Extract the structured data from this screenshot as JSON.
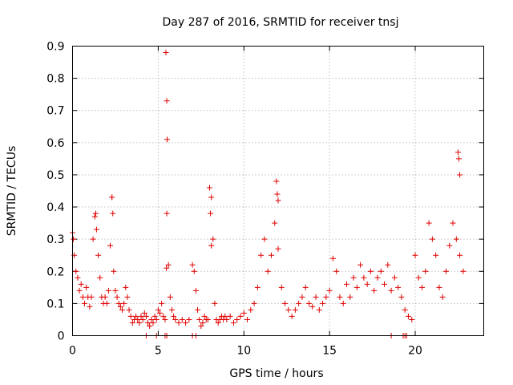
{
  "chart_data": {
    "type": "scatter",
    "title": "Day 287 of 2016, SRMTID for receiver tnsj",
    "xlabel": "GPS time / hours",
    "ylabel": "SRMTID / TECUs",
    "xlim": [
      0,
      24
    ],
    "ylim": [
      0,
      0.9
    ],
    "xticks": [
      0,
      5,
      10,
      15,
      20
    ],
    "yticks": [
      0,
      0.1,
      0.2,
      0.3,
      0.4,
      0.5,
      0.6,
      0.7,
      0.8,
      0.9
    ],
    "xtick_labels": [
      "0",
      "5",
      "10",
      "15",
      "20"
    ],
    "ytick_labels": [
      "0",
      "0.1",
      "0.2",
      "0.3",
      "0.4",
      "0.5",
      "0.6",
      "0.7",
      "0.8",
      "0.9"
    ],
    "grid": true,
    "marker": "+",
    "color": "#e00000",
    "series": [
      {
        "name": "SRMTID",
        "x": [
          0.0,
          0.1,
          0.2,
          0.3,
          0.4,
          0.5,
          0.6,
          0.7,
          0.8,
          0.9,
          1.0,
          1.1,
          1.2,
          1.3,
          1.4,
          1.5,
          1.6,
          1.7,
          1.8,
          1.9,
          2.0,
          2.1,
          2.2,
          2.3,
          2.4,
          2.5,
          2.6,
          2.7,
          2.8,
          2.9,
          3.0,
          3.1,
          3.2,
          3.3,
          3.4,
          3.5,
          3.6,
          3.7,
          3.8,
          3.9,
          4.0,
          4.1,
          4.2,
          4.3,
          4.4,
          4.5,
          4.6,
          4.7,
          4.8,
          4.9,
          5.0,
          5.1,
          5.2,
          5.3,
          5.4,
          5.5,
          5.6,
          5.7,
          5.8,
          5.9,
          6.0,
          6.2,
          6.4,
          6.6,
          6.8,
          7.0,
          7.1,
          7.2,
          7.3,
          7.4,
          7.5,
          7.6,
          7.7,
          7.8,
          7.9,
          8.0,
          8.1,
          8.2,
          8.3,
          8.4,
          8.5,
          8.6,
          8.7,
          8.8,
          8.9,
          9.0,
          9.2,
          9.4,
          9.6,
          9.8,
          10.0,
          10.2,
          10.4,
          10.6,
          10.8,
          11.0,
          11.2,
          11.4,
          11.6,
          11.8,
          12.0,
          12.2,
          12.4,
          12.6,
          12.8,
          13.0,
          13.2,
          13.4,
          13.6,
          13.8,
          14.0,
          14.2,
          14.4,
          14.6,
          14.8,
          15.0,
          15.2,
          15.4,
          15.6,
          15.8,
          16.0,
          16.2,
          16.4,
          16.6,
          16.8,
          17.0,
          17.2,
          17.4,
          17.6,
          17.8,
          18.0,
          18.2,
          18.4,
          18.6,
          18.8,
          19.0,
          19.2,
          19.4,
          19.6,
          19.8,
          20.0,
          20.2,
          20.4,
          20.6,
          20.8,
          21.0,
          21.2,
          21.4,
          21.6,
          21.8,
          22.0,
          22.2,
          22.4,
          22.6,
          22.8,
          5.45,
          5.5,
          5.52,
          5.48,
          8.0,
          8.05,
          8.1,
          11.9,
          11.95,
          2.3,
          2.35,
          22.5,
          22.55,
          22.6,
          12.0,
          1.35,
          0.05,
          4.3,
          4.9,
          5.5,
          7.0,
          7.2,
          18.6,
          19.3,
          19.4,
          19.5,
          5.4
        ],
        "y": [
          0.32,
          0.25,
          0.2,
          0.18,
          0.14,
          0.16,
          0.12,
          0.1,
          0.15,
          0.12,
          0.09,
          0.12,
          0.3,
          0.37,
          0.33,
          0.25,
          0.18,
          0.12,
          0.1,
          0.12,
          0.1,
          0.14,
          0.28,
          0.43,
          0.2,
          0.14,
          0.12,
          0.1,
          0.09,
          0.08,
          0.1,
          0.15,
          0.12,
          0.08,
          0.06,
          0.04,
          0.05,
          0.06,
          0.05,
          0.04,
          0.06,
          0.05,
          0.07,
          0.06,
          0.04,
          0.03,
          0.05,
          0.04,
          0.06,
          0.05,
          0.08,
          0.07,
          0.1,
          0.06,
          0.05,
          0.38,
          0.22,
          0.12,
          0.08,
          0.06,
          0.05,
          0.04,
          0.05,
          0.04,
          0.05,
          0.22,
          0.2,
          0.14,
          0.08,
          0.05,
          0.03,
          0.04,
          0.06,
          0.05,
          0.05,
          0.46,
          0.43,
          0.3,
          0.1,
          0.05,
          0.04,
          0.05,
          0.06,
          0.05,
          0.06,
          0.05,
          0.06,
          0.04,
          0.05,
          0.06,
          0.07,
          0.05,
          0.08,
          0.1,
          0.15,
          0.25,
          0.3,
          0.2,
          0.25,
          0.35,
          0.27,
          0.15,
          0.1,
          0.08,
          0.06,
          0.08,
          0.1,
          0.12,
          0.15,
          0.1,
          0.09,
          0.12,
          0.08,
          0.1,
          0.12,
          0.14,
          0.24,
          0.2,
          0.12,
          0.1,
          0.16,
          0.12,
          0.18,
          0.15,
          0.22,
          0.18,
          0.16,
          0.2,
          0.14,
          0.18,
          0.2,
          0.16,
          0.22,
          0.14,
          0.18,
          0.15,
          0.12,
          0.08,
          0.06,
          0.05,
          0.25,
          0.18,
          0.15,
          0.2,
          0.35,
          0.3,
          0.25,
          0.15,
          0.12,
          0.2,
          0.28,
          0.35,
          0.3,
          0.25,
          0.2,
          0.88,
          0.73,
          0.61,
          0.21,
          0.46,
          0.38,
          0.28,
          0.48,
          0.44,
          0.43,
          0.38,
          0.57,
          0.55,
          0.5,
          0.42,
          0.38,
          0.3,
          0.0,
          0.0,
          0.0,
          0.0,
          0.0,
          0.0,
          0.0,
          0.0,
          0.0,
          0.0
        ]
      }
    ]
  }
}
